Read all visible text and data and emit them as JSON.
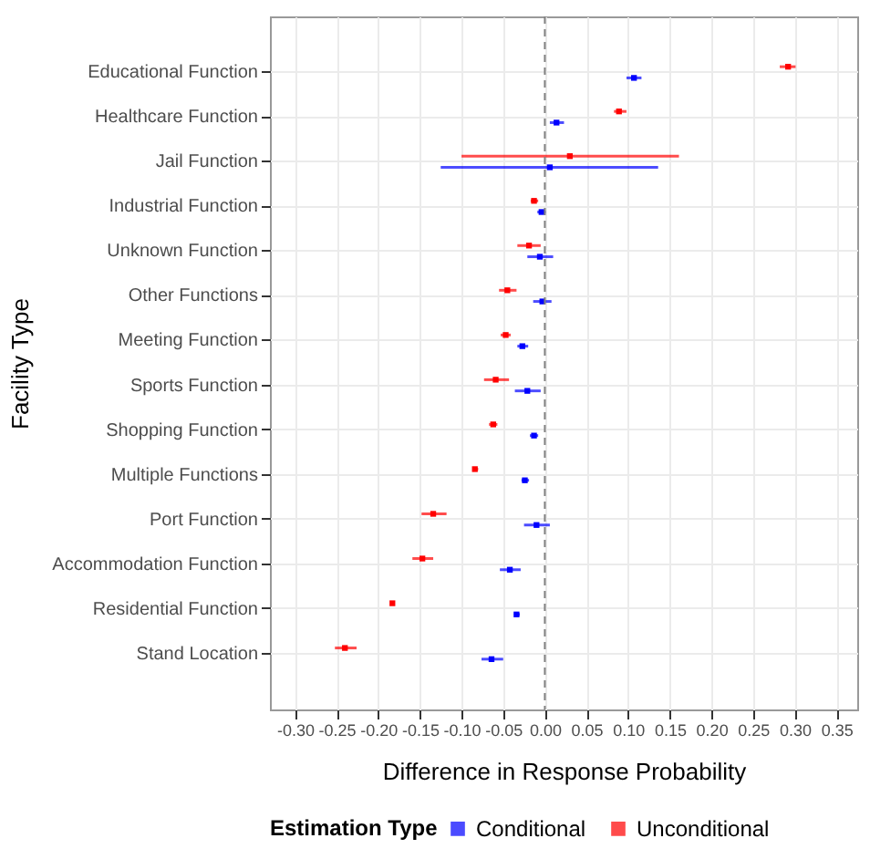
{
  "chart_data": {
    "type": "scatter",
    "xlabel": "Difference in Response Probability",
    "ylabel": "Facility Type",
    "legend_title": "Estimation Type",
    "orientation": "horizontal",
    "categories": [
      "Educational Function",
      "Healthcare Function",
      "Jail Function",
      "Industrial Function",
      "Unknown Function",
      "Other Functions",
      "Meeting Function",
      "Sports Function",
      "Shopping Function",
      "Multiple Functions",
      "Port Function",
      "Accommodation Function",
      "Residential Function",
      "Stand Location"
    ],
    "series": [
      {
        "name": "Conditional",
        "color": "#0000ff",
        "values": [
          0.107,
          0.014,
          0.006,
          -0.004,
          -0.006,
          -0.003,
          -0.027,
          -0.021,
          -0.013,
          -0.024,
          -0.01,
          -0.042,
          -0.034,
          -0.064
        ],
        "errors": [
          [
            0.098,
            0.116
          ],
          [
            0.006,
            0.023
          ],
          [
            -0.125,
            0.136
          ],
          [
            -0.009,
            0.001
          ],
          [
            -0.021,
            0.01
          ],
          [
            -0.014,
            0.008
          ],
          [
            -0.033,
            -0.02
          ],
          [
            -0.036,
            -0.005
          ],
          [
            -0.018,
            -0.008
          ],
          [
            -0.028,
            -0.019
          ],
          [
            -0.025,
            0.006
          ],
          [
            -0.054,
            -0.029
          ],
          [
            -0.037,
            -0.03
          ],
          [
            -0.076,
            -0.05
          ]
        ]
      },
      {
        "name": "Unconditional",
        "color": "#ff0000",
        "values": [
          0.292,
          0.089,
          0.03,
          -0.013,
          -0.019,
          -0.045,
          -0.047,
          -0.059,
          -0.062,
          -0.084,
          -0.134,
          -0.147,
          -0.183,
          -0.24
        ],
        "errors": [
          [
            0.282,
            0.301
          ],
          [
            0.083,
            0.098
          ],
          [
            -0.1,
            0.161
          ],
          [
            -0.017,
            -0.008
          ],
          [
            -0.033,
            -0.005
          ],
          [
            -0.055,
            -0.034
          ],
          [
            -0.053,
            -0.041
          ],
          [
            -0.073,
            -0.043
          ],
          [
            -0.067,
            -0.057
          ],
          [
            -0.087,
            -0.08
          ],
          [
            -0.148,
            -0.118
          ],
          [
            -0.159,
            -0.134
          ],
          [
            -0.185,
            -0.18
          ],
          [
            -0.252,
            -0.226
          ]
        ]
      }
    ],
    "xlim": [
      -0.33,
      0.375
    ],
    "xticks": [
      {
        "value": -0.3,
        "label": "-0.30"
      },
      {
        "value": -0.25,
        "label": "-0.25"
      },
      {
        "value": -0.2,
        "label": "-0.20"
      },
      {
        "value": -0.15,
        "label": "-0.15"
      },
      {
        "value": -0.1,
        "label": "-0.10"
      },
      {
        "value": -0.05,
        "label": "-0.05"
      },
      {
        "value": 0,
        "label": "0.00"
      },
      {
        "value": 0.05,
        "label": "0.05"
      },
      {
        "value": 0.1,
        "label": "0.10"
      },
      {
        "value": 0.15,
        "label": "0.15"
      },
      {
        "value": 0.2,
        "label": "0.20"
      },
      {
        "value": 0.25,
        "label": "0.25"
      },
      {
        "value": 0.3,
        "label": "0.30"
      },
      {
        "value": 0.35,
        "label": "0.35"
      }
    ],
    "ref_lines": [
      {
        "axis": "x",
        "value": 0,
        "color": "#808080",
        "line_style": "dashed"
      }
    ],
    "grid": true,
    "legend": "bottom",
    "marker": "square"
  }
}
